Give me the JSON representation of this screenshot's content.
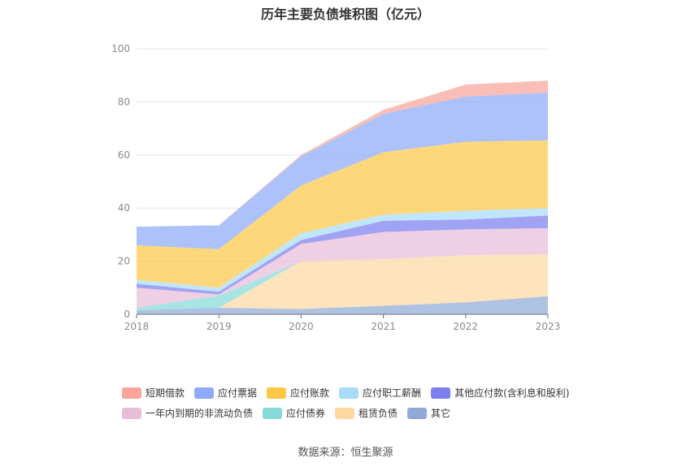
{
  "chart_data": {
    "type": "area",
    "stacked": true,
    "title": "历年主要负债堆积图（亿元）",
    "x": [
      "2018",
      "2019",
      "2020",
      "2021",
      "2022",
      "2023"
    ],
    "ylim": [
      0,
      100
    ],
    "yticks": [
      0,
      20,
      40,
      60,
      80,
      100
    ],
    "grid": true,
    "series": [
      {
        "name": "其它",
        "color": "#8faad6",
        "values": [
          1.5,
          2.5,
          2.0,
          3.2,
          4.5,
          6.8
        ]
      },
      {
        "name": "租赁负债",
        "color": "#fcd9a2",
        "values": [
          0,
          0,
          18.0,
          17.5,
          17.8,
          15.8
        ]
      },
      {
        "name": "应付债券",
        "color": "#86d9d9",
        "values": [
          1.0,
          4.5,
          0,
          0,
          0,
          0
        ]
      },
      {
        "name": "一年内到期的非流动负债",
        "color": "#e9bcd9",
        "values": [
          7.5,
          0.5,
          6.5,
          10.3,
          9.7,
          9.8
        ]
      },
      {
        "name": "其他应付款(含利息和股利)",
        "color": "#7b7ff0",
        "values": [
          1.5,
          1.0,
          1.5,
          4.2,
          3.7,
          4.8
        ]
      },
      {
        "name": "应付职工薪酬",
        "color": "#a7dcf9",
        "values": [
          1.5,
          1.5,
          2.5,
          2.3,
          3.3,
          2.8
        ]
      },
      {
        "name": "应付账款",
        "color": "#fdc846",
        "values": [
          13.0,
          14.5,
          18.0,
          23.5,
          26.0,
          25.5
        ]
      },
      {
        "name": "应付票据",
        "color": "#8eaaf8",
        "values": [
          7.0,
          9.0,
          11.0,
          14.5,
          17.0,
          18.0
        ]
      },
      {
        "name": "短期借款",
        "color": "#f8a59a",
        "values": [
          0,
          0,
          0.5,
          1.5,
          4.5,
          4.5
        ]
      }
    ]
  },
  "legend": {
    "row1": [
      {
        "label": "短期借款",
        "color": "#f8a59a"
      },
      {
        "label": "应付票据",
        "color": "#8eaaf8"
      },
      {
        "label": "应付账款",
        "color": "#fdc846"
      },
      {
        "label": "应付职工薪酬",
        "color": "#a7dcf9"
      },
      {
        "label": "其他应付款(含利息和股利)",
        "color": "#7b7ff0"
      }
    ],
    "row2": [
      {
        "label": "一年内到期的非流动负债",
        "color": "#e9bcd9"
      },
      {
        "label": "应付债券",
        "color": "#86d9d9"
      },
      {
        "label": "租赁负债",
        "color": "#fcd9a2"
      },
      {
        "label": "其它",
        "color": "#8faad6"
      }
    ]
  },
  "source": "数据来源：恒生聚源"
}
